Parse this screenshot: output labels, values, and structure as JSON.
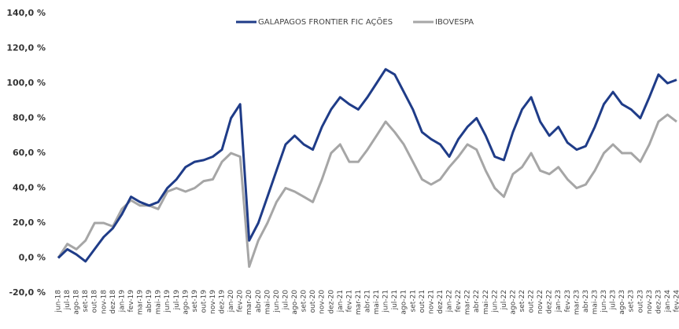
{
  "chart_data": {
    "type": "line",
    "categories": [
      "jun-18",
      "jul-18",
      "ago-18",
      "set-18",
      "out-18",
      "nov-18",
      "dez-18",
      "jan-19",
      "fev-19",
      "mar-19",
      "abr-19",
      "mai-19",
      "jun-19",
      "jul-19",
      "ago-19",
      "set-19",
      "out-19",
      "nov-19",
      "dez-19",
      "jan-20",
      "fev-20",
      "mar-20",
      "abr-20",
      "mai-20",
      "jun-20",
      "jul-20",
      "ago-20",
      "set-20",
      "out-20",
      "nov-20",
      "dez-20",
      "jan-21",
      "fev-21",
      "mar-21",
      "abr-21",
      "mai-21",
      "jun-21",
      "jul-21",
      "ago-21",
      "set-21",
      "out-21",
      "nov-21",
      "dez-21",
      "jan-22",
      "fev-22",
      "mar-22",
      "abr-22",
      "mai-22",
      "jun-22",
      "jul-22",
      "ago-22",
      "set-22",
      "out-22",
      "nov-22",
      "dez-22",
      "jan-23",
      "fev-23",
      "mar-23",
      "abr-23",
      "mai-23",
      "jun-23",
      "jul-23",
      "ago-23",
      "set-23",
      "out-23",
      "nov-23",
      "dez-23",
      "jan-24",
      "fev-24"
    ],
    "series": [
      {
        "name": "GALAPAGOS FRONTIER FIC AÇÕES",
        "color": "#1f3c88",
        "values": [
          0,
          5,
          2,
          -2,
          5,
          12,
          17,
          25,
          35,
          32,
          30,
          32,
          40,
          45,
          52,
          55,
          56,
          58,
          62,
          80,
          88,
          10,
          20,
          35,
          50,
          65,
          70,
          65,
          62,
          75,
          85,
          92,
          88,
          85,
          92,
          100,
          108,
          105,
          95,
          85,
          72,
          68,
          65,
          58,
          68,
          75,
          80,
          70,
          58,
          56,
          72,
          85,
          92,
          78,
          70,
          75,
          66,
          62,
          64,
          75,
          88,
          95,
          88,
          85,
          80,
          92,
          105,
          100,
          102
        ]
      },
      {
        "name": "IBOVESPA",
        "color": "#a6a6a6",
        "values": [
          0,
          8,
          5,
          10,
          20,
          20,
          18,
          28,
          33,
          30,
          30,
          28,
          38,
          40,
          38,
          40,
          44,
          45,
          55,
          60,
          58,
          -5,
          10,
          20,
          32,
          40,
          38,
          35,
          32,
          45,
          60,
          65,
          55,
          55,
          62,
          70,
          78,
          72,
          65,
          55,
          45,
          42,
          45,
          52,
          58,
          65,
          62,
          50,
          40,
          35,
          48,
          52,
          60,
          50,
          48,
          52,
          45,
          40,
          42,
          50,
          60,
          65,
          60,
          60,
          55,
          65,
          78,
          82,
          78
        ]
      }
    ],
    "ylim": [
      -20,
      140
    ],
    "yticks": [
      {
        "value": -20,
        "label": "-20,0 %"
      },
      {
        "value": 0,
        "label": "0,0 %"
      },
      {
        "value": 20,
        "label": "20,0 %"
      },
      {
        "value": 40,
        "label": "40,0 %"
      },
      {
        "value": 60,
        "label": "60,0 %"
      },
      {
        "value": 80,
        "label": "80,0 %"
      },
      {
        "value": 100,
        "label": "100,0 %"
      },
      {
        "value": 120,
        "label": "120,0 %"
      },
      {
        "value": 140,
        "label": "140,0 %"
      }
    ],
    "legend": "top"
  }
}
